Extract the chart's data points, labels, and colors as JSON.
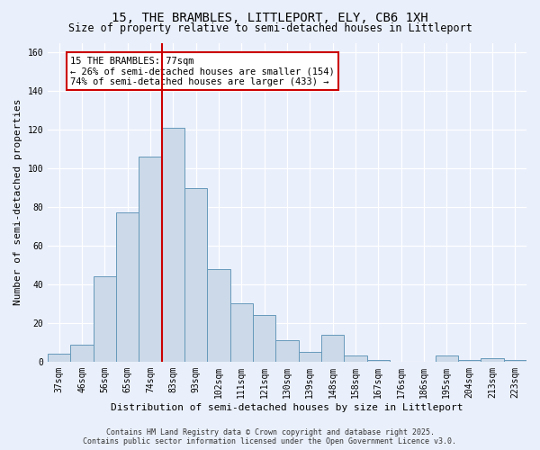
{
  "title1": "15, THE BRAMBLES, LITTLEPORT, ELY, CB6 1XH",
  "title2": "Size of property relative to semi-detached houses in Littleport",
  "xlabel": "Distribution of semi-detached houses by size in Littleport",
  "ylabel": "Number of semi-detached properties",
  "categories": [
    "37sqm",
    "46sqm",
    "56sqm",
    "65sqm",
    "74sqm",
    "83sqm",
    "93sqm",
    "102sqm",
    "111sqm",
    "121sqm",
    "130sqm",
    "139sqm",
    "148sqm",
    "158sqm",
    "167sqm",
    "176sqm",
    "186sqm",
    "195sqm",
    "204sqm",
    "213sqm",
    "223sqm"
  ],
  "values": [
    4,
    9,
    44,
    77,
    106,
    121,
    90,
    48,
    30,
    24,
    11,
    5,
    14,
    3,
    1,
    0,
    0,
    3,
    1,
    2,
    1
  ],
  "bar_color": "#ccd9e8",
  "bar_edge_color": "#6699bb",
  "vline_x_idx": 4,
  "vline_color": "#cc0000",
  "annotation_title": "15 THE BRAMBLES: 77sqm",
  "annotation_line1": "← 26% of semi-detached houses are smaller (154)",
  "annotation_line2": "74% of semi-detached houses are larger (433) →",
  "annotation_box_color": "#ffffff",
  "annotation_box_edge": "#cc0000",
  "ylim": [
    0,
    165
  ],
  "yticks": [
    0,
    20,
    40,
    60,
    80,
    100,
    120,
    140,
    160
  ],
  "footer1": "Contains HM Land Registry data © Crown copyright and database right 2025.",
  "footer2": "Contains public sector information licensed under the Open Government Licence v3.0.",
  "bg_color": "#eaf0fb",
  "plot_bg_color": "#eaf0fb",
  "grid_color": "#ffffff",
  "title1_fontsize": 10,
  "title2_fontsize": 8.5,
  "tick_fontsize": 7,
  "ylabel_fontsize": 8,
  "xlabel_fontsize": 8,
  "footer_fontsize": 6,
  "annot_fontsize": 7.5
}
